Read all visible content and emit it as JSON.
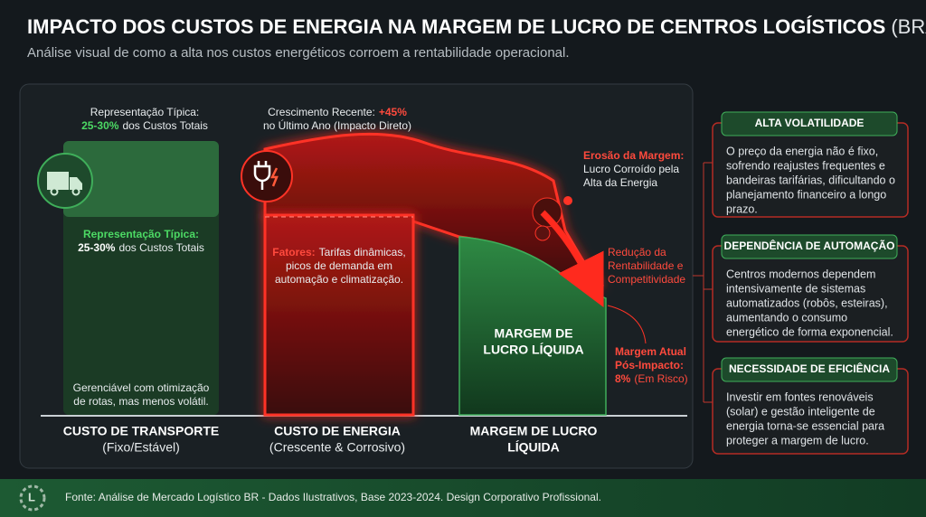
{
  "header": {
    "title": "IMPACTO DOS CUSTOS DE ENERGIA NA MARGEM DE LUCRO DE CENTROS LOGÍSTICOS",
    "title_suffix": "(BRASIL)",
    "subtitle": "Análise visual de como a alta nos custos energéticos corroem a rentabilidade operacional."
  },
  "columns": [
    {
      "top_label": "Representação Típica:",
      "top_value": "25-30%",
      "top_rest": "dos Custos Totais",
      "inner_label": "Representação Típica:",
      "inner_value": "25-30%",
      "inner_rest": "dos Custos Totais",
      "note": [
        "Gerenciável com otimização",
        "de rotas, mas menos volátil."
      ],
      "title": "CUSTO DE TRANSPORTE",
      "subtitle": "(Fixo/Estável)"
    },
    {
      "top_label": "Crescimento Recente:",
      "top_value": "+45%",
      "top_rest": "no Último Ano (Impacto Direto)",
      "factors_label": "Fatores:",
      "factors": [
        "Tarifas dinâmicas,",
        "picos de demanda em",
        "automação e climatização."
      ],
      "title": "CUSTO DE ENERGIA",
      "subtitle": "(Crescente & Corrosivo)"
    },
    {
      "inner": [
        "MARGEM DE",
        "LUCRO LÍQUIDA"
      ],
      "title": [
        "MARGEM DE LUCRO",
        "LÍQUIDA"
      ]
    }
  ],
  "annotations": {
    "erosion": {
      "label": "Erosão da Margem:",
      "lines": [
        "Lucro Corroído pela",
        "Alta da Energia"
      ]
    },
    "reduction": [
      "Redução da",
      "Rentabilidade e",
      "Competitividade"
    ],
    "current": {
      "lines": [
        "Margem Atual",
        "Pós-Impacto:"
      ],
      "value": "8%",
      "rest": "(Em Risco)"
    }
  },
  "cards": [
    {
      "title": "ALTA VOLATILIDADE",
      "lines": [
        "O preço da energia não é fixo,",
        "sofrendo reajustes frequentes e",
        "bandeiras tarifárias, dificultando o",
        "planejamento financeiro a longo",
        "prazo."
      ]
    },
    {
      "title": "DEPENDÊNCIA DE AUTOMAÇÃO",
      "lines": [
        "Centros modernos dependem",
        "intensivamente de sistemas",
        "automatizados (robôs, esteiras),",
        "aumentando o consumo",
        "energético de forma exponencial."
      ]
    },
    {
      "title": "NECESSIDADE DE EFICIÊNCIA",
      "lines": [
        "Investir em fontes renováveis",
        "(solar) e gestão inteligente de",
        "energia torna-se essencial para",
        "proteger a margem de lucro."
      ]
    }
  ],
  "footer": "Fonte: Análise de Mercado Logístico BR - Dados Ilustrativos, Base 2023-2024. Design Corporativo Profissional."
}
